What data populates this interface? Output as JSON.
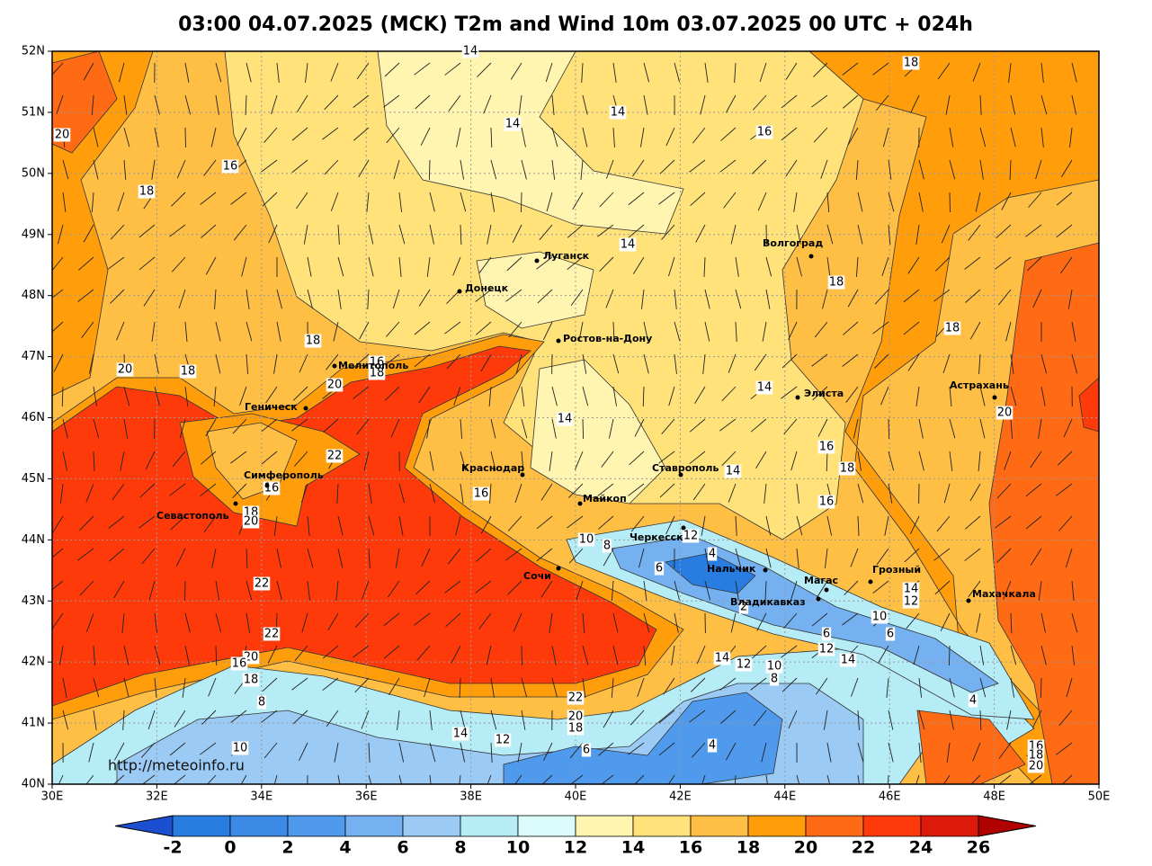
{
  "map": {
    "title": "03:00 04.07.2025 (MCK) T2m and Wind 10m 03.07.2025 00 UTC + 024h",
    "lonlim": [
      30,
      50
    ],
    "latlim": [
      40,
      52
    ],
    "lonticks": [
      {
        "value": 30,
        "label": "30E"
      },
      {
        "value": 32,
        "label": "32E"
      },
      {
        "value": 34,
        "label": "34E"
      },
      {
        "value": 36,
        "label": "36E"
      },
      {
        "value": 38,
        "label": "38E"
      },
      {
        "value": 40,
        "label": "40E"
      },
      {
        "value": 42,
        "label": "42E"
      },
      {
        "value": 44,
        "label": "44E"
      },
      {
        "value": 46,
        "label": "46E"
      },
      {
        "value": 48,
        "label": "48E"
      },
      {
        "value": 50,
        "label": "50E"
      }
    ],
    "latticks": [
      {
        "value": 40,
        "label": "40N"
      },
      {
        "value": 41,
        "label": "41N"
      },
      {
        "value": 42,
        "label": "42N"
      },
      {
        "value": 43,
        "label": "43N"
      },
      {
        "value": 44,
        "label": "44N"
      },
      {
        "value": 45,
        "label": "45N"
      },
      {
        "value": 46,
        "label": "46N"
      },
      {
        "value": 47,
        "label": "47N"
      },
      {
        "value": 48,
        "label": "48N"
      },
      {
        "value": 49,
        "label": "49N"
      },
      {
        "value": 50,
        "label": "50N"
      },
      {
        "value": 51,
        "label": "51N"
      },
      {
        "value": 52,
        "label": "52N"
      }
    ],
    "grid": true,
    "cities": [
      "Луганск",
      "Донецк",
      "Ростов-на-Дону",
      "Волгоград",
      "Мелитополь",
      "Геническ",
      "Элиста",
      "Астрахань",
      "Симферополь",
      "Севастополь",
      "Краснодар",
      "Ставрополь",
      "Майкоп",
      "Черкесск",
      "Нальчик",
      "Сочи",
      "Магас",
      "Грозный",
      "Владикавказ",
      "Махачкала"
    ],
    "contour_labels": [
      "14",
      "20",
      "14",
      "14",
      "16",
      "18",
      "16",
      "18",
      "14",
      "18",
      "18",
      "18",
      "20",
      "18",
      "16",
      "18",
      "20",
      "14",
      "20",
      "14",
      "16",
      "18",
      "14",
      "22",
      "16",
      "16",
      "16",
      "18",
      "20",
      "10",
      "8",
      "12",
      "4",
      "6",
      "22",
      "14",
      "12",
      "2",
      "10",
      "6",
      "6",
      "12",
      "22",
      "14",
      "14",
      "12",
      "10",
      "20",
      "16",
      "18",
      "8",
      "22",
      "4",
      "8",
      "20",
      "18",
      "14",
      "12",
      "4",
      "6",
      "10",
      "16",
      "18",
      "20"
    ],
    "source": "http://meteoinfo.ru",
    "colorbar": {
      "levels": [
        -2,
        0,
        2,
        4,
        6,
        8,
        10,
        12,
        14,
        16,
        18,
        20,
        22,
        24,
        26
      ],
      "colors": [
        "#1c4fd0",
        "#2a7de0",
        "#3d8ae6",
        "#4f9aec",
        "#75b0f0",
        "#9bcbf4",
        "#b5ecf6",
        "#dbfcfa",
        "#fff5b0",
        "#ffe27a",
        "#ffbf45",
        "#ff9e0a",
        "#ff6a14",
        "#ff3a0a",
        "#dd1a0a",
        "#b00000"
      ]
    }
  }
}
